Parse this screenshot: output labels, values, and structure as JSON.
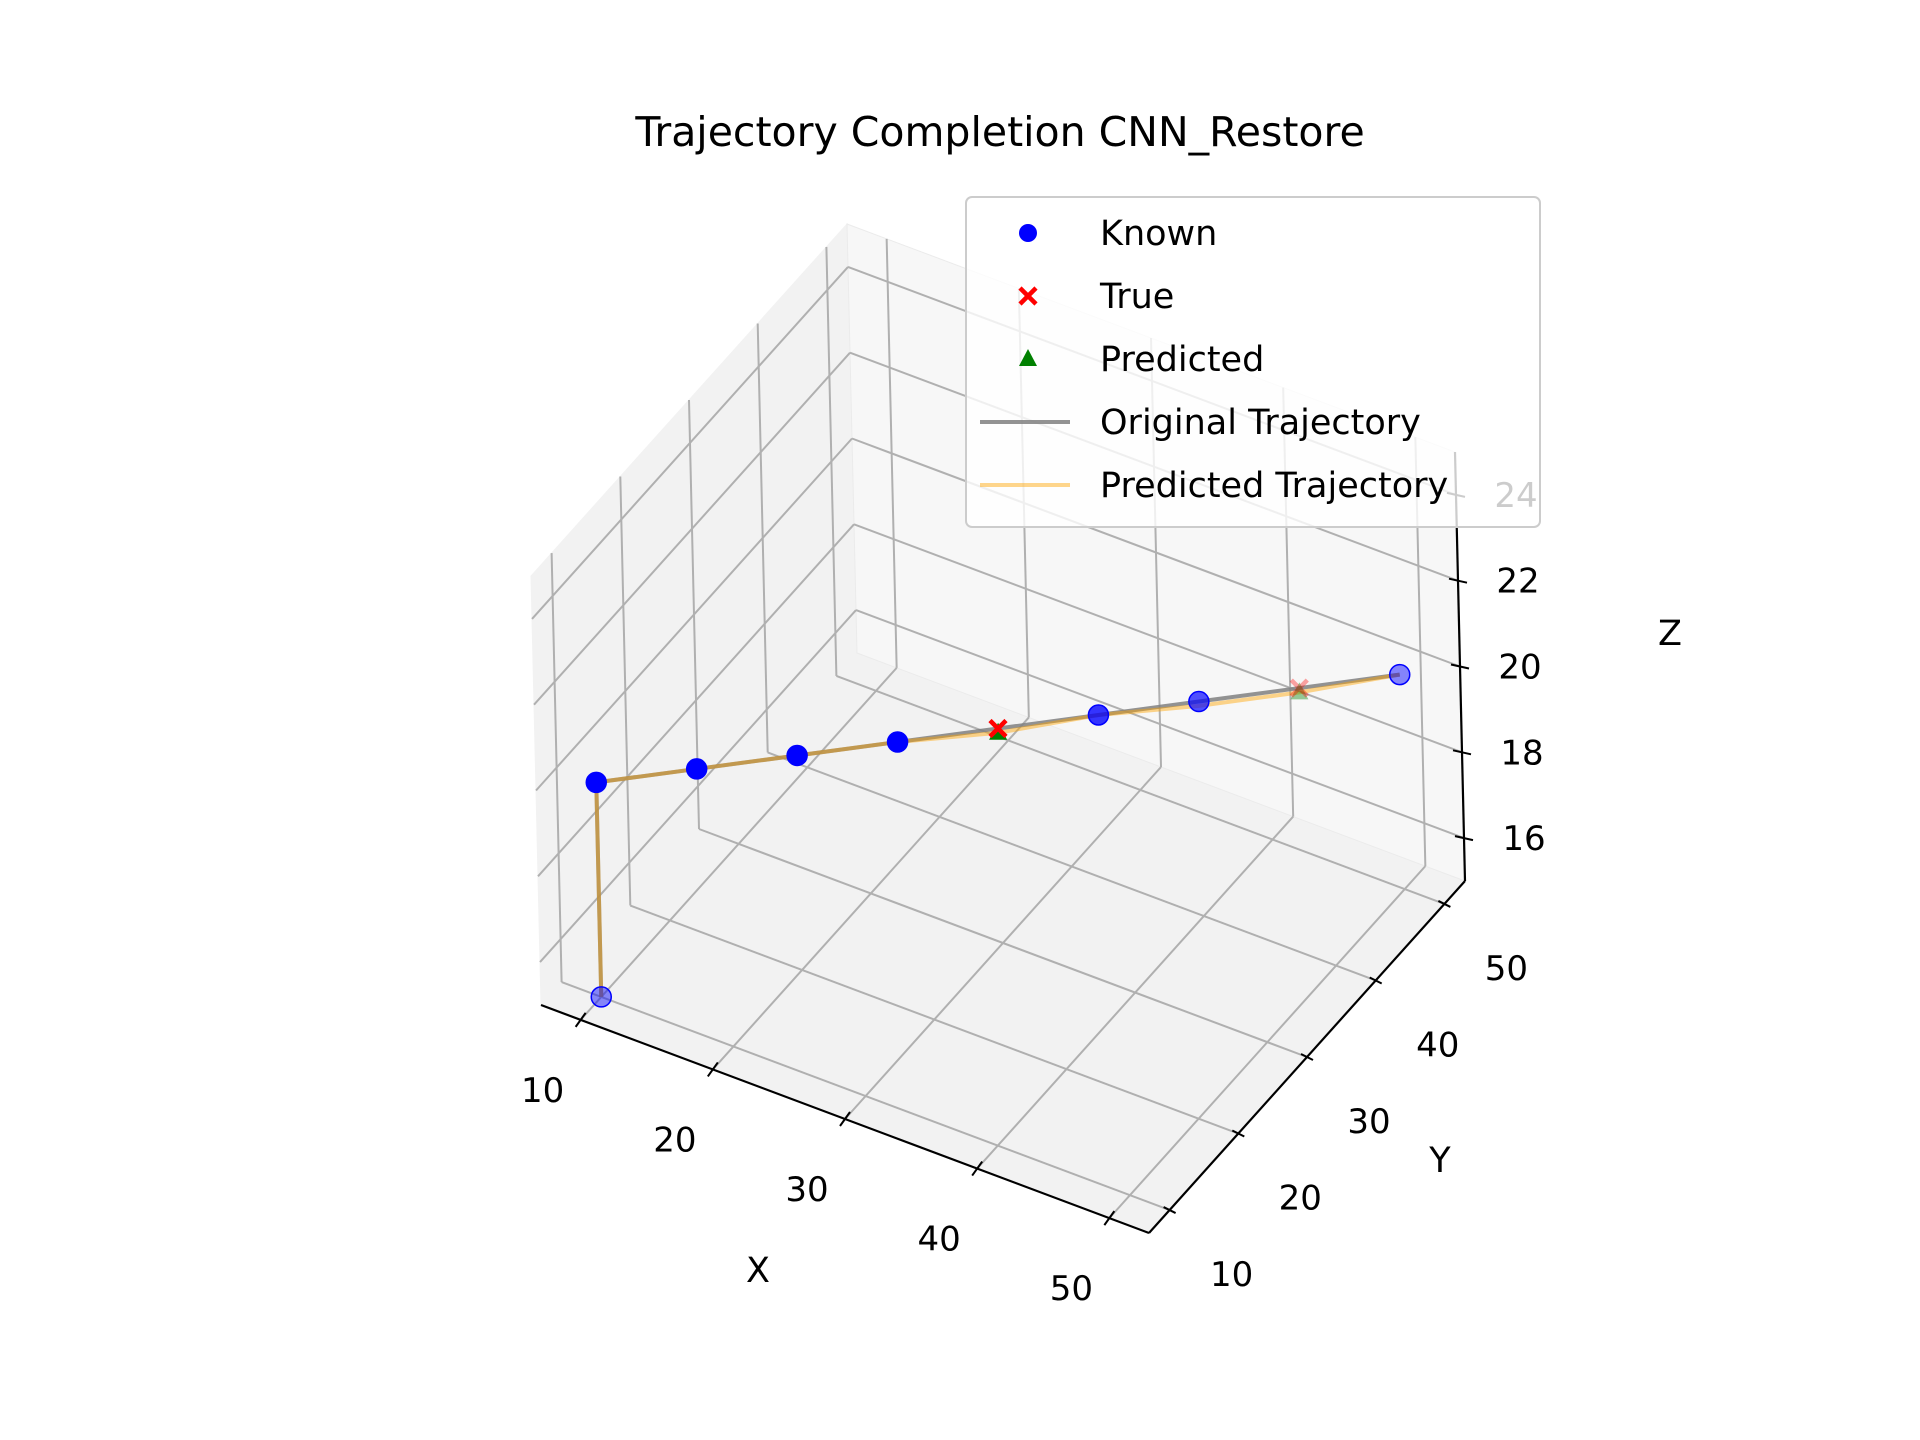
{
  "chart_data": {
    "type": "scatter",
    "title": "Trajectory Completion CNN_Restore",
    "xlabel": "X",
    "ylabel": "Y",
    "zlabel": "Z",
    "xlim": [
      7,
      53
    ],
    "ylim": [
      7,
      53
    ],
    "zlim": [
      15,
      25
    ],
    "x_ticks": [
      "10",
      "20",
      "30",
      "40",
      "50"
    ],
    "y_ticks": [
      "10",
      "20",
      "30",
      "40",
      "50"
    ],
    "z_ticks": [
      "16",
      "18",
      "20",
      "22",
      "24"
    ],
    "grid": true,
    "legend_position": "upper right",
    "colors": {
      "known": "#0000ff",
      "true": "#ff0000",
      "predicted": "#008000",
      "original_trajectory": "#808080",
      "predicted_trajectory": "#ffa500"
    },
    "series": [
      {
        "name": "Known",
        "marker": "circle",
        "points": [
          {
            "x": 10,
            "y": 10,
            "z": 15
          },
          {
            "x": 10,
            "y": 10,
            "z": 20
          },
          {
            "x": 15,
            "y": 15,
            "z": 20
          },
          {
            "x": 20,
            "y": 20,
            "z": 20
          },
          {
            "x": 25,
            "y": 25,
            "z": 20
          },
          {
            "x": 35,
            "y": 35,
            "z": 20
          },
          {
            "x": 40,
            "y": 40,
            "z": 20
          },
          {
            "x": 50,
            "y": 50,
            "z": 20
          }
        ]
      },
      {
        "name": "True",
        "marker": "x",
        "points": [
          {
            "x": 30,
            "y": 30,
            "z": 20
          },
          {
            "x": 45,
            "y": 45,
            "z": 20
          }
        ]
      },
      {
        "name": "Predicted",
        "marker": "triangle",
        "points": [
          {
            "x": 30,
            "y": 30,
            "z": 19.9
          },
          {
            "x": 45,
            "y": 45,
            "z": 19.9
          }
        ]
      },
      {
        "name": "Original Trajectory",
        "marker": "line",
        "points": [
          {
            "x": 10,
            "y": 10,
            "z": 15
          },
          {
            "x": 10,
            "y": 10,
            "z": 20
          },
          {
            "x": 15,
            "y": 15,
            "z": 20
          },
          {
            "x": 20,
            "y": 20,
            "z": 20
          },
          {
            "x": 25,
            "y": 25,
            "z": 20
          },
          {
            "x": 30,
            "y": 30,
            "z": 20
          },
          {
            "x": 35,
            "y": 35,
            "z": 20
          },
          {
            "x": 40,
            "y": 40,
            "z": 20
          },
          {
            "x": 45,
            "y": 45,
            "z": 20
          },
          {
            "x": 50,
            "y": 50,
            "z": 20
          }
        ]
      },
      {
        "name": "Predicted Trajectory",
        "marker": "line",
        "points": [
          {
            "x": 10,
            "y": 10,
            "z": 15
          },
          {
            "x": 10,
            "y": 10,
            "z": 20
          },
          {
            "x": 15,
            "y": 15,
            "z": 20
          },
          {
            "x": 20,
            "y": 20,
            "z": 20
          },
          {
            "x": 25,
            "y": 25,
            "z": 20
          },
          {
            "x": 30,
            "y": 30,
            "z": 19.9
          },
          {
            "x": 35,
            "y": 35,
            "z": 20
          },
          {
            "x": 40,
            "y": 40,
            "z": 19.9
          },
          {
            "x": 45,
            "y": 45,
            "z": 19.9
          },
          {
            "x": 50,
            "y": 50,
            "z": 20
          }
        ]
      }
    ]
  }
}
